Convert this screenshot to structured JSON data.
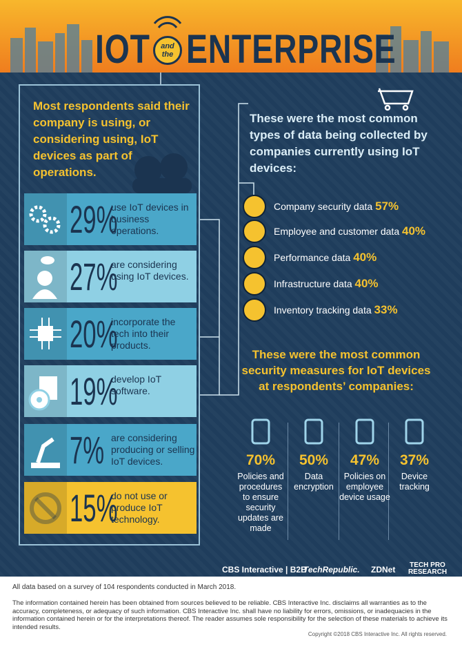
{
  "header": {
    "title_left": "IOT",
    "title_small": "and the",
    "title_right": "ENTERPRISE"
  },
  "usage": {
    "heading": "Most respondents said their company is using, or considering using, IoT devices as part of operations.",
    "rows": [
      {
        "percent": "29%",
        "text": "use IoT devices in business operations."
      },
      {
        "percent": "27%",
        "text": "are considering using IoT devices."
      },
      {
        "percent": "20%",
        "text": "incorporate the tech into their products."
      },
      {
        "percent": "19%",
        "text": "develop IoT software."
      },
      {
        "percent": "7%",
        "text": "are considering producing or selling IoT devices."
      },
      {
        "percent": "15%",
        "text": "do not use or produce IoT technology."
      }
    ]
  },
  "data_types": {
    "heading": "These were the most common types of data being collected by companies currently using IoT devices:",
    "items": [
      {
        "label": "Company security data",
        "percent": "57%"
      },
      {
        "label": "Employee and customer data",
        "percent": "40%"
      },
      {
        "label": "Performance data",
        "percent": "40%"
      },
      {
        "label": "Infrastructure data",
        "percent": "40%"
      },
      {
        "label": "Inventory tracking data",
        "percent": "33%"
      }
    ]
  },
  "security": {
    "heading": "These were the most common security measures for IoT devices at respondents’ companies:",
    "items": [
      {
        "percent": "70%",
        "label": "Policies and procedures to ensure security updates are made"
      },
      {
        "percent": "50%",
        "label": "Data encryption"
      },
      {
        "percent": "47%",
        "label": "Policies on employee device usage"
      },
      {
        "percent": "37%",
        "label": "Device tracking"
      }
    ]
  },
  "logos": [
    "CBS Interactive | B2B",
    "TechRepublic.",
    "ZDNet",
    "TECH PRO RESEARCH"
  ],
  "footer": {
    "survey": "All data based on a survey of 104 respondents conducted in March 2018.",
    "disclaimer": "The information contained herein has been obtained from sources believed to be reliable. CBS Interactive Inc. disclaims all warranties as to the accuracy, completeness, or adequacy of such information. CBS Interactive Inc. shall have no liability for errors, omissions, or inadequacies in the information contained herein or for the interpretations thereof. The reader assumes sole responsibility for the selection of these materials to achieve its intended results.",
    "copyright": "Copyright ©2018 CBS Interactive Inc. All rights reserved."
  }
}
